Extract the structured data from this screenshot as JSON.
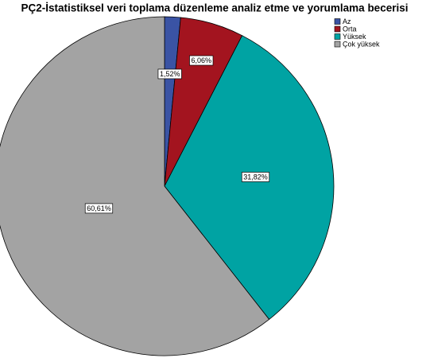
{
  "chart_data": {
    "type": "pie",
    "title": "PÇ2-İstatistiksel veri toplama düzenleme analiz etme ve yorumlama becerisi",
    "categories": [
      "Az",
      "Orta",
      "Yüksek",
      "Çok yüksek"
    ],
    "values": [
      1.52,
      6.06,
      31.82,
      60.61
    ],
    "value_labels": [
      "1,52%",
      "6,06%",
      "31,82%",
      "60,61%"
    ],
    "colors": [
      "#3a53a4",
      "#a3141f",
      "#00a3a3",
      "#a3a3a3"
    ],
    "legend": "top-right"
  }
}
